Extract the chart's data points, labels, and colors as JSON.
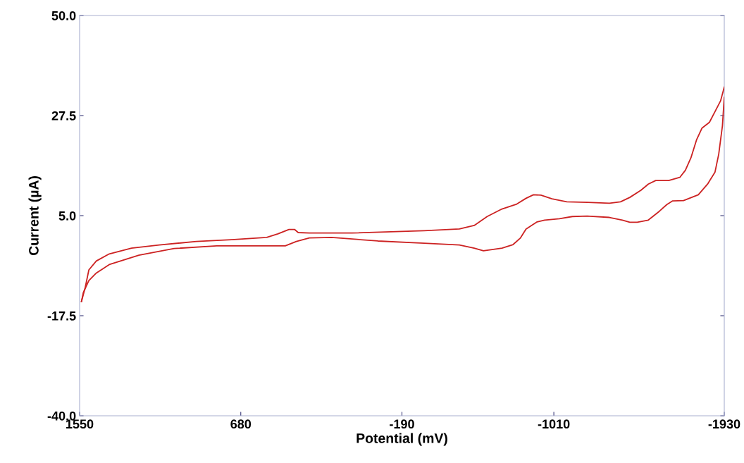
{
  "chart_data": {
    "type": "line",
    "xlabel": "Potential (mV)",
    "ylabel": "Current (µA)",
    "xlim": [
      1550,
      -1930
    ],
    "xticks": [
      1550,
      680,
      -190,
      -1010,
      -1930
    ],
    "ylim": [
      -40,
      50
    ],
    "yticks": [
      {
        "value": -40,
        "label": "-40.0"
      },
      -17.5,
      {
        "value": 5,
        "label": "5.0"
      },
      27.5,
      {
        "value": 50,
        "label": "50.0"
      }
    ],
    "grid": false,
    "marker": "none",
    "line_style": "solid",
    "series": [
      {
        "color": "#cc2222",
        "x": [
          1540,
          1520,
          1500,
          1460,
          1390,
          1270,
          1120,
          920,
          730,
          540,
          480,
          420,
          390,
          370,
          310,
          80,
          -310,
          -500,
          -580,
          -650,
          -730,
          -810,
          -860,
          -900,
          -940,
          -1000,
          -1080,
          -1190,
          -1310,
          -1370,
          -1420,
          -1480,
          -1520,
          -1560,
          -1630,
          -1690,
          -1720,
          -1750,
          -1780,
          -1810,
          -1850,
          -1880,
          -1910,
          -1930
        ],
        "values": [
          -14.3,
          -11.2,
          -7.2,
          -5.2,
          -3.6,
          -2.3,
          -1.6,
          -0.8,
          -0.4,
          0.1,
          0.9,
          1.9,
          1.9,
          1.2,
          1.1,
          1.1,
          1.6,
          2.0,
          2.8,
          4.8,
          6.5,
          7.6,
          8.9,
          9.7,
          9.6,
          8.8,
          8.1,
          8.0,
          7.8,
          8.1,
          9.1,
          10.7,
          12.1,
          12.9,
          12.9,
          13.6,
          15.2,
          18.0,
          22.0,
          24.7,
          26.0,
          28.4,
          30.8,
          33.9
        ]
      },
      {
        "color": "#cc2222",
        "x": [
          -1930,
          -1920,
          -1900,
          -1880,
          -1840,
          -1790,
          -1710,
          -1650,
          -1620,
          -1580,
          -1520,
          -1460,
          -1420,
          -1380,
          -1310,
          -1190,
          -1110,
          -1040,
          -960,
          -920,
          -860,
          -830,
          -790,
          -730,
          -630,
          -580,
          -500,
          -310,
          -60,
          190,
          310,
          380,
          440,
          540,
          810,
          1040,
          1230,
          1390,
          1460,
          1500,
          1530,
          1540
        ],
        "values": [
          31.6,
          25.2,
          18.8,
          14.8,
          12.1,
          9.7,
          8.4,
          8.3,
          7.5,
          6.0,
          4.0,
          3.5,
          3.5,
          4.0,
          4.6,
          4.9,
          4.8,
          4.3,
          4.0,
          3.6,
          2.0,
          0.0,
          -1.5,
          -2.3,
          -2.9,
          -2.3,
          -1.6,
          -1.2,
          -0.7,
          0.1,
          0.0,
          -0.8,
          -1.8,
          -1.8,
          -1.8,
          -2.4,
          -3.9,
          -6.0,
          -7.9,
          -9.6,
          -12.3,
          -14.3
        ]
      }
    ]
  }
}
